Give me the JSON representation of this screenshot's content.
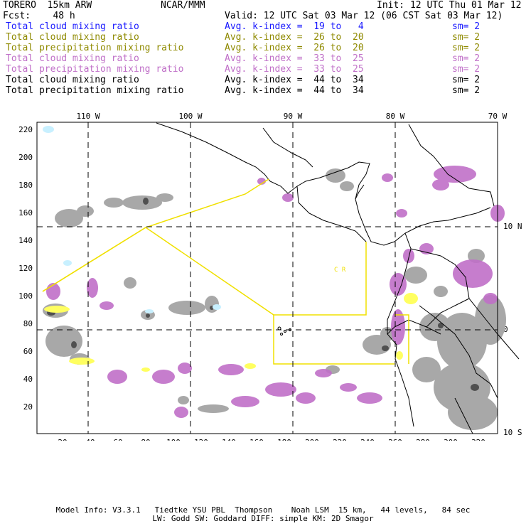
{
  "header": {
    "model": "TORERO  15km ARW",
    "org": "NCAR/MMM",
    "init": "Init: 12 UTC Thu 01 Mar 12",
    "fcst": "Fcst:    48 h",
    "valid": "Valid: 12 UTC Sat 03 Mar 12 (06 CST Sat 03 Mar 12)"
  },
  "legend": [
    {
      "field": "Total cloud mixing ratio",
      "kindex": "Avg. k-index =  19 to   4",
      "sm": "sm= 2",
      "color": "#1a1aff"
    },
    {
      "field": "Total cloud mixing ratio",
      "kindex": "Avg. k-index =  26 to  20",
      "sm": "sm= 2",
      "color": "#8f8a00"
    },
    {
      "field": "Total precipitation mixing ratio",
      "kindex": "Avg. k-index =  26 to  20",
      "sm": "sm= 2",
      "color": "#8f8a00"
    },
    {
      "field": "Total cloud mixing ratio",
      "kindex": "Avg. k-index =  33 to  25",
      "sm": "sm= 2",
      "color": "#c070c8"
    },
    {
      "field": "Total precipitation mixing ratio",
      "kindex": "Avg. k-index =  33 to  25",
      "sm": "sm= 2",
      "color": "#c070c8"
    },
    {
      "field": "Total cloud mixing ratio",
      "kindex": "Avg. k-index =  44 to  34",
      "sm": "sm= 2",
      "color": "#000000"
    },
    {
      "field": "Total precipitation mixing ratio",
      "kindex": "Avg. k-index =  44 to  34",
      "sm": "sm= 2",
      "color": "#000000"
    }
  ],
  "map": {
    "lon_labels": [
      "110 W",
      "100 W",
      "90 W",
      "80 W",
      "70 W"
    ],
    "lat_labels": [
      "10 N",
      "0",
      "10 S"
    ],
    "y_ticks": [
      "220",
      "200",
      "180",
      "160",
      "140",
      "120",
      "100",
      "80",
      "60",
      "40",
      "20"
    ],
    "x_ticks": [
      "20",
      "40",
      "60",
      "80",
      "100",
      "120",
      "140",
      "160",
      "180",
      "200",
      "220",
      "240",
      "260",
      "280",
      "300",
      "320"
    ],
    "inner_mark": "C R",
    "colors": {
      "gray": "#a8a8a8",
      "dark": "#505050",
      "purple": "#c070c8",
      "yellow": "#ffff60",
      "cyan": "#c8f0ff",
      "domain": "#f0e000"
    }
  },
  "footer": {
    "line1": "Model Info: V3.3.1   Tiedtke YSU PBL  Thompson    Noah LSM  15 km,   44 levels,   84 sec",
    "line2": "LW: Godd SW: Goddard DIFF: simple KM: 2D Smagor"
  }
}
